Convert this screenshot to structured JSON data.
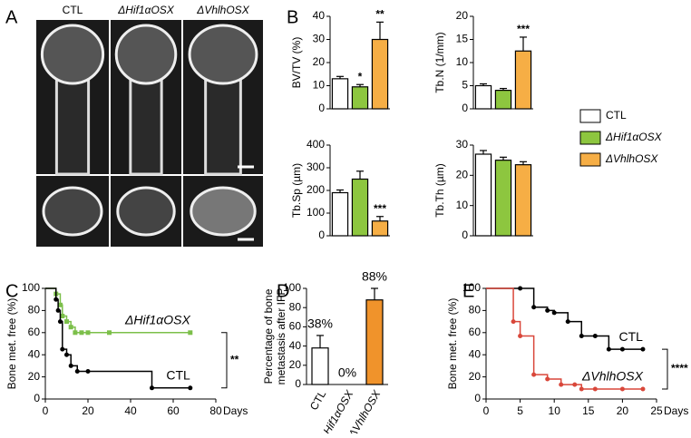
{
  "panels": [
    "A",
    "B",
    "C",
    "D",
    "E"
  ],
  "panel_a": {
    "labels": [
      "CTL",
      "ΔHif1αOSX",
      "ΔVhlhOSX"
    ]
  },
  "legend": {
    "items": [
      {
        "name": "CTL",
        "color": "#ffffff"
      },
      {
        "name": "ΔHif1αOSX",
        "color": "#8dc63f"
      },
      {
        "name": "ΔVhlhOSX",
        "color": "#f6ae45"
      }
    ]
  },
  "chart_data": [
    {
      "type": "bar",
      "ylabel": "BV/TV (%)",
      "categories": [
        null,
        null,
        null
      ],
      "values": [
        13,
        9.5,
        30
      ],
      "errors": [
        1,
        1,
        7.5
      ],
      "colors": [
        "#ffffff",
        "#8dc63f",
        "#f6ae45"
      ],
      "significance": [
        null,
        "*",
        "**"
      ],
      "ylim": [
        0,
        40
      ],
      "yticks": [
        0,
        10,
        20,
        30,
        40
      ]
    },
    {
      "type": "bar",
      "ylabel": "Tb.N (1/mm)",
      "categories": [
        null,
        null,
        null
      ],
      "values": [
        5,
        4,
        12.5
      ],
      "errors": [
        0.4,
        0.4,
        3
      ],
      "colors": [
        "#ffffff",
        "#8dc63f",
        "#f6ae45"
      ],
      "significance": [
        null,
        null,
        "***"
      ],
      "ylim": [
        0,
        20
      ],
      "yticks": [
        0,
        5,
        10,
        15,
        20
      ]
    },
    {
      "type": "bar",
      "ylabel": "Tb.Sp (µm)",
      "categories": [
        null,
        null,
        null
      ],
      "values": [
        190,
        250,
        65
      ],
      "errors": [
        12,
        35,
        20
      ],
      "colors": [
        "#ffffff",
        "#8dc63f",
        "#f6ae45"
      ],
      "significance": [
        null,
        null,
        "***"
      ],
      "ylim": [
        0,
        400
      ],
      "yticks": [
        0,
        100,
        200,
        300,
        400
      ]
    },
    {
      "type": "bar",
      "ylabel": "Tb.Th (µm)",
      "categories": [
        null,
        null,
        null
      ],
      "values": [
        27,
        25,
        23.5
      ],
      "errors": [
        1.2,
        1,
        1
      ],
      "colors": [
        "#ffffff",
        "#8dc63f",
        "#f6ae45"
      ],
      "significance": [
        null,
        null,
        null
      ],
      "ylim": [
        0,
        30
      ],
      "yticks": [
        0,
        10,
        20,
        30
      ]
    },
    {
      "type": "step",
      "ylabel": "Bone met. free (%)",
      "xlabel": "Days",
      "annotation": "**",
      "xlim": [
        0,
        80
      ],
      "xticks": [
        0,
        20,
        40,
        60,
        80
      ],
      "ylim": [
        0,
        100
      ],
      "yticks": [
        0,
        20,
        40,
        60,
        80,
        100
      ],
      "series": [
        {
          "name": "ΔHif1αOSX",
          "color": "#7cbf4a",
          "x": [
            0,
            5,
            7,
            8,
            10,
            12,
            14,
            17,
            20,
            30,
            68
          ],
          "values": [
            100,
            95,
            85,
            75,
            70,
            65,
            60,
            60,
            60,
            60,
            60
          ]
        },
        {
          "name": "CTL",
          "color": "#000000",
          "x": [
            0,
            5,
            6,
            7,
            8,
            10,
            12,
            15,
            20,
            50,
            68
          ],
          "values": [
            100,
            90,
            80,
            70,
            45,
            40,
            30,
            25,
            25,
            10,
            10
          ]
        }
      ]
    },
    {
      "type": "bar",
      "ylabel": "Percentage of bone metastasis after IFP",
      "categories": [
        "CTL",
        "ΔHif1αOSX",
        "ΔVhlhOSX"
      ],
      "values": [
        38,
        0,
        88
      ],
      "value_labels": [
        "38%",
        "0%",
        "88%"
      ],
      "errors": [
        13,
        0,
        12
      ],
      "colors": [
        "#ffffff",
        "#ffffff",
        "#f0932b"
      ],
      "ylim": [
        0,
        100
      ],
      "yticks": [
        0,
        20,
        40,
        60,
        80,
        100
      ]
    },
    {
      "type": "step",
      "ylabel": "Bone met. free (%)",
      "xlabel": "Days",
      "annotation": "****",
      "xlim": [
        0,
        25
      ],
      "xticks": [
        0,
        5,
        10,
        15,
        20,
        25
      ],
      "ylim": [
        0,
        100
      ],
      "yticks": [
        0,
        20,
        40,
        60,
        80,
        100
      ],
      "series": [
        {
          "name": "CTL",
          "color": "#000000",
          "x": [
            0,
            5,
            7,
            9,
            10,
            12,
            14,
            16,
            18,
            20,
            23
          ],
          "values": [
            100,
            100,
            83,
            80,
            78,
            70,
            57,
            57,
            45,
            45,
            45
          ]
        },
        {
          "name": "ΔVhlhOSX",
          "color": "#d9473a",
          "x": [
            0,
            4,
            5,
            7,
            9,
            11,
            13,
            14,
            16,
            20,
            23
          ],
          "values": [
            100,
            70,
            57,
            22,
            18,
            13,
            13,
            9,
            9,
            9,
            9
          ]
        }
      ]
    }
  ]
}
